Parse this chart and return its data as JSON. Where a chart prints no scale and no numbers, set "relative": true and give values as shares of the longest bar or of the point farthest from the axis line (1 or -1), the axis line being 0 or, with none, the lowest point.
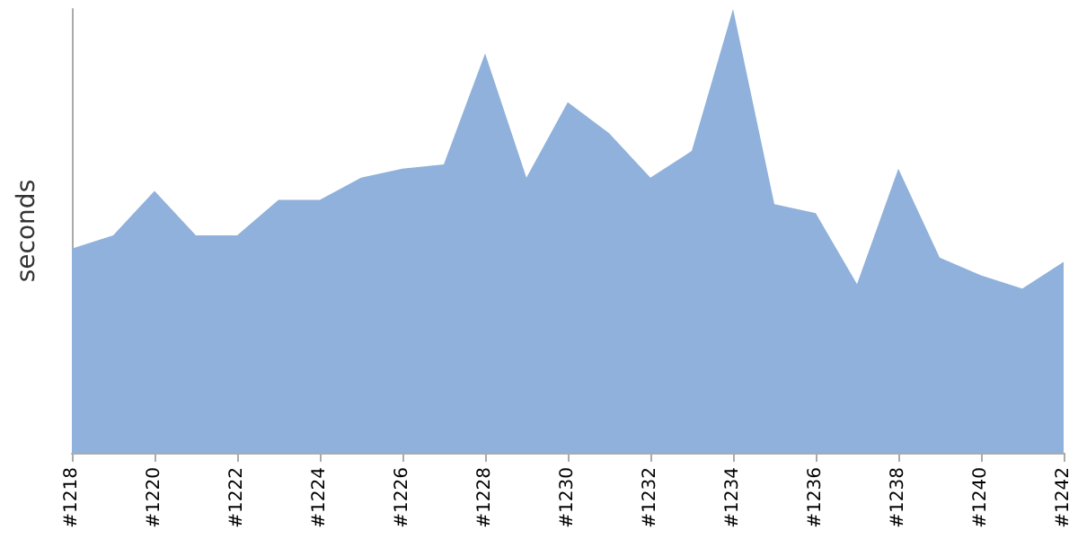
{
  "chart_data": {
    "type": "area",
    "ylabel": "seconds",
    "relative": true,
    "marker": "none",
    "categories": [
      "#1218",
      null,
      "#1220",
      null,
      "#1222",
      null,
      "#1224",
      null,
      "#1226",
      null,
      "#1228",
      null,
      "#1230",
      null,
      "#1232",
      null,
      "#1234",
      null,
      "#1236",
      null,
      "#1238",
      null,
      "#1240",
      null,
      "#1242"
    ],
    "series": [
      {
        "color": "#8fb1db",
        "values": [
          0.46,
          0.49,
          0.59,
          0.49,
          0.49,
          0.57,
          0.57,
          0.62,
          0.64,
          0.65,
          0.9,
          0.62,
          0.79,
          0.72,
          0.62,
          0.68,
          1,
          0.56,
          0.54,
          0.38,
          0.64,
          0.44,
          0.4,
          0.37,
          0.43
        ]
      }
    ]
  }
}
